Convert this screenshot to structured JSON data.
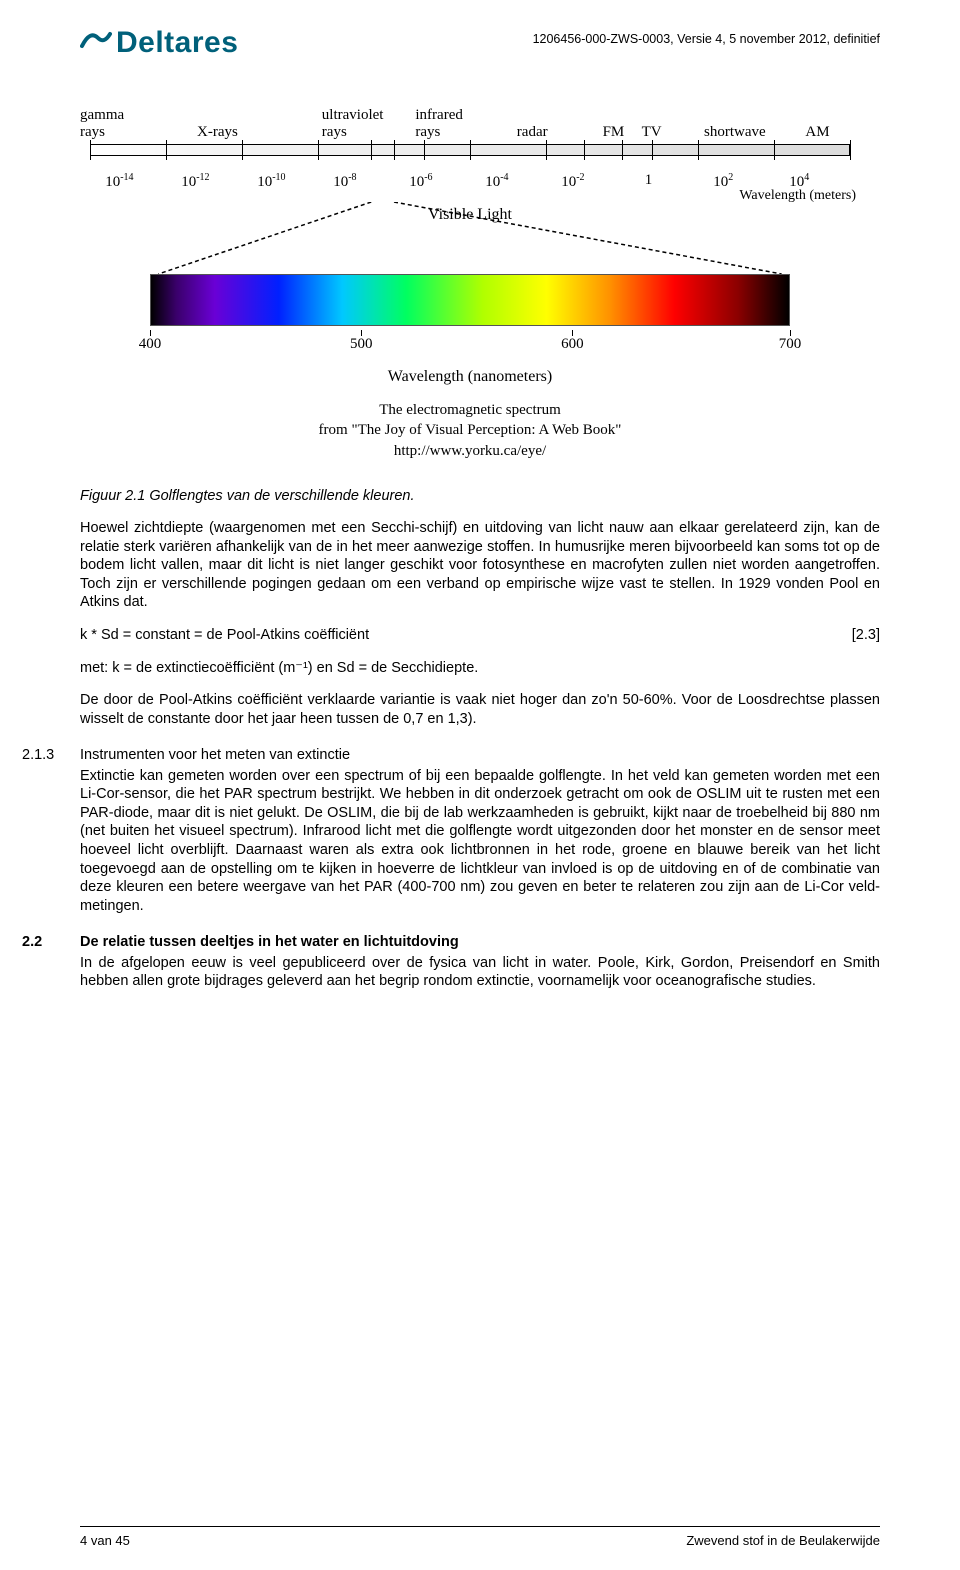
{
  "header": {
    "logo_text": "Deltares",
    "logo_color": "#00607a",
    "doc_ref": "1206456-000-ZWS-0003, Versie 4, 5 november 2012, definitief"
  },
  "figure": {
    "em_labels": [
      {
        "text": "gamma\nrays",
        "left_pct": 0
      },
      {
        "text": "X-rays",
        "left_pct": 15
      },
      {
        "text": "ultraviolet\nrays",
        "left_pct": 31
      },
      {
        "text": "infrared\nrays",
        "left_pct": 43
      },
      {
        "text": "radar",
        "left_pct": 56
      },
      {
        "text": "FM",
        "left_pct": 67
      },
      {
        "text": "TV",
        "left_pct": 72
      },
      {
        "text": "shortwave",
        "left_pct": 80
      },
      {
        "text": "AM",
        "left_pct": 93
      }
    ],
    "em_tick_pcts": [
      0,
      10,
      20,
      30,
      37,
      40,
      44,
      50,
      60,
      65,
      70,
      74,
      80,
      90,
      100
    ],
    "wavelengths": [
      {
        "base": "10",
        "exp": "-14",
        "left_pct": 2
      },
      {
        "base": "10",
        "exp": "-12",
        "left_pct": 12
      },
      {
        "base": "10",
        "exp": "-10",
        "left_pct": 22
      },
      {
        "base": "10",
        "exp": "-8",
        "left_pct": 32
      },
      {
        "base": "10",
        "exp": "-6",
        "left_pct": 42
      },
      {
        "base": "10",
        "exp": "-4",
        "left_pct": 52
      },
      {
        "base": "10",
        "exp": "-2",
        "left_pct": 62
      },
      {
        "base": "1",
        "exp": "",
        "left_pct": 73
      },
      {
        "base": "10",
        "exp": "2",
        "left_pct": 82
      },
      {
        "base": "10",
        "exp": "4",
        "left_pct": 92
      }
    ],
    "wavelength_caption": "Wavelength (meters)",
    "visible_label": "Visible Light",
    "visible_spectrum_stops": [
      {
        "pct": 0,
        "color": "#000000"
      },
      {
        "pct": 4,
        "color": "#3a006b"
      },
      {
        "pct": 10,
        "color": "#6a00d6"
      },
      {
        "pct": 20,
        "color": "#0020ff"
      },
      {
        "pct": 30,
        "color": "#00c8ff"
      },
      {
        "pct": 40,
        "color": "#00ff60"
      },
      {
        "pct": 52,
        "color": "#b0ff00"
      },
      {
        "pct": 62,
        "color": "#ffff00"
      },
      {
        "pct": 72,
        "color": "#ff9000"
      },
      {
        "pct": 82,
        "color": "#ff0000"
      },
      {
        "pct": 92,
        "color": "#8b0000"
      },
      {
        "pct": 100,
        "color": "#000000"
      }
    ],
    "visible_ticks": [
      {
        "label": "400",
        "pct": 0
      },
      {
        "label": "500",
        "pct": 33
      },
      {
        "label": "600",
        "pct": 66
      },
      {
        "label": "700",
        "pct": 100
      }
    ],
    "visible_axis_caption": "Wavelength (nanometers)",
    "credit_line1": "The electromagnetic spectrum",
    "credit_line2": "from \"The Joy of Visual Perception: A Web Book\"",
    "credit_line3": "http://www.yorku.ca/eye/"
  },
  "text": {
    "fig_caption": "Figuur 2.1 Golflengtes van de verschillende kleuren.",
    "para1": "Hoewel zichtdiepte (waargenomen met een Secchi-schijf) en uitdoving van licht nauw aan elkaar gerelateerd zijn, kan de relatie sterk variëren afhankelijk van de in het meer aanwezige stoffen. In humusrijke meren bijvoorbeeld kan soms tot op de bodem licht vallen, maar dit licht is niet langer geschikt voor fotosynthese en macrofyten zullen niet worden aangetroffen. Toch zijn er verschillende pogingen gedaan om een verband op empirische wijze vast te stellen. In 1929 vonden Pool en Atkins dat.",
    "eq_lhs": "k * Sd = constant = de Pool-Atkins coëfficiënt",
    "eq_rhs": "[2.3]",
    "para2": "met: k = de extinctiecoëfficiënt (m⁻¹) en Sd = de Secchidiepte.",
    "para3": "De door de Pool-Atkins coëfficiënt verklaarde variantie is vaak niet hoger dan zo'n 50-60%. Voor de Loosdrechtse plassen wisselt de constante door het jaar heen tussen de 0,7 en 1,3).",
    "sec213_num": "2.1.3",
    "sec213_title": "Instrumenten voor het meten van extinctie",
    "sec213_body": "Extinctie kan gemeten worden over een spectrum of bij een bepaalde golflengte. In het veld kan gemeten worden met een Li-Cor-sensor, die het PAR spectrum bestrijkt. We hebben in dit onderzoek getracht om ook de OSLIM uit te rusten met een PAR-diode, maar dit is niet gelukt. De OSLIM, die bij de lab werkzaamheden is gebruikt, kijkt naar de troebelheid bij 880 nm (net buiten het visueel spectrum). Infrarood licht met die golflengte wordt uitgezonden door het monster en de sensor meet hoeveel licht overblijft. Daarnaast waren als extra ook lichtbronnen in het rode, groene en blauwe bereik van het licht toegevoegd aan de opstelling om te kijken in hoeverre de lichtkleur van invloed is op de uitdoving en of de combinatie van deze kleuren een betere weergave van het PAR (400-700 nm) zou geven en beter te relateren zou zijn aan de Li-Cor veld-metingen.",
    "sec22_num": "2.2",
    "sec22_title": "De relatie tussen deeltjes in het water en lichtuitdoving",
    "sec22_body": "In de afgelopen eeuw is veel gepubliceerd over de fysica van licht in water. Poole, Kirk, Gordon, Preisendorf en Smith hebben allen grote bijdrages geleverd aan het begrip rondom extinctie, voornamelijk voor oceanografische studies."
  },
  "footer": {
    "left": "4 van 45",
    "right": "Zwevend stof in de Beulakerwijde"
  }
}
